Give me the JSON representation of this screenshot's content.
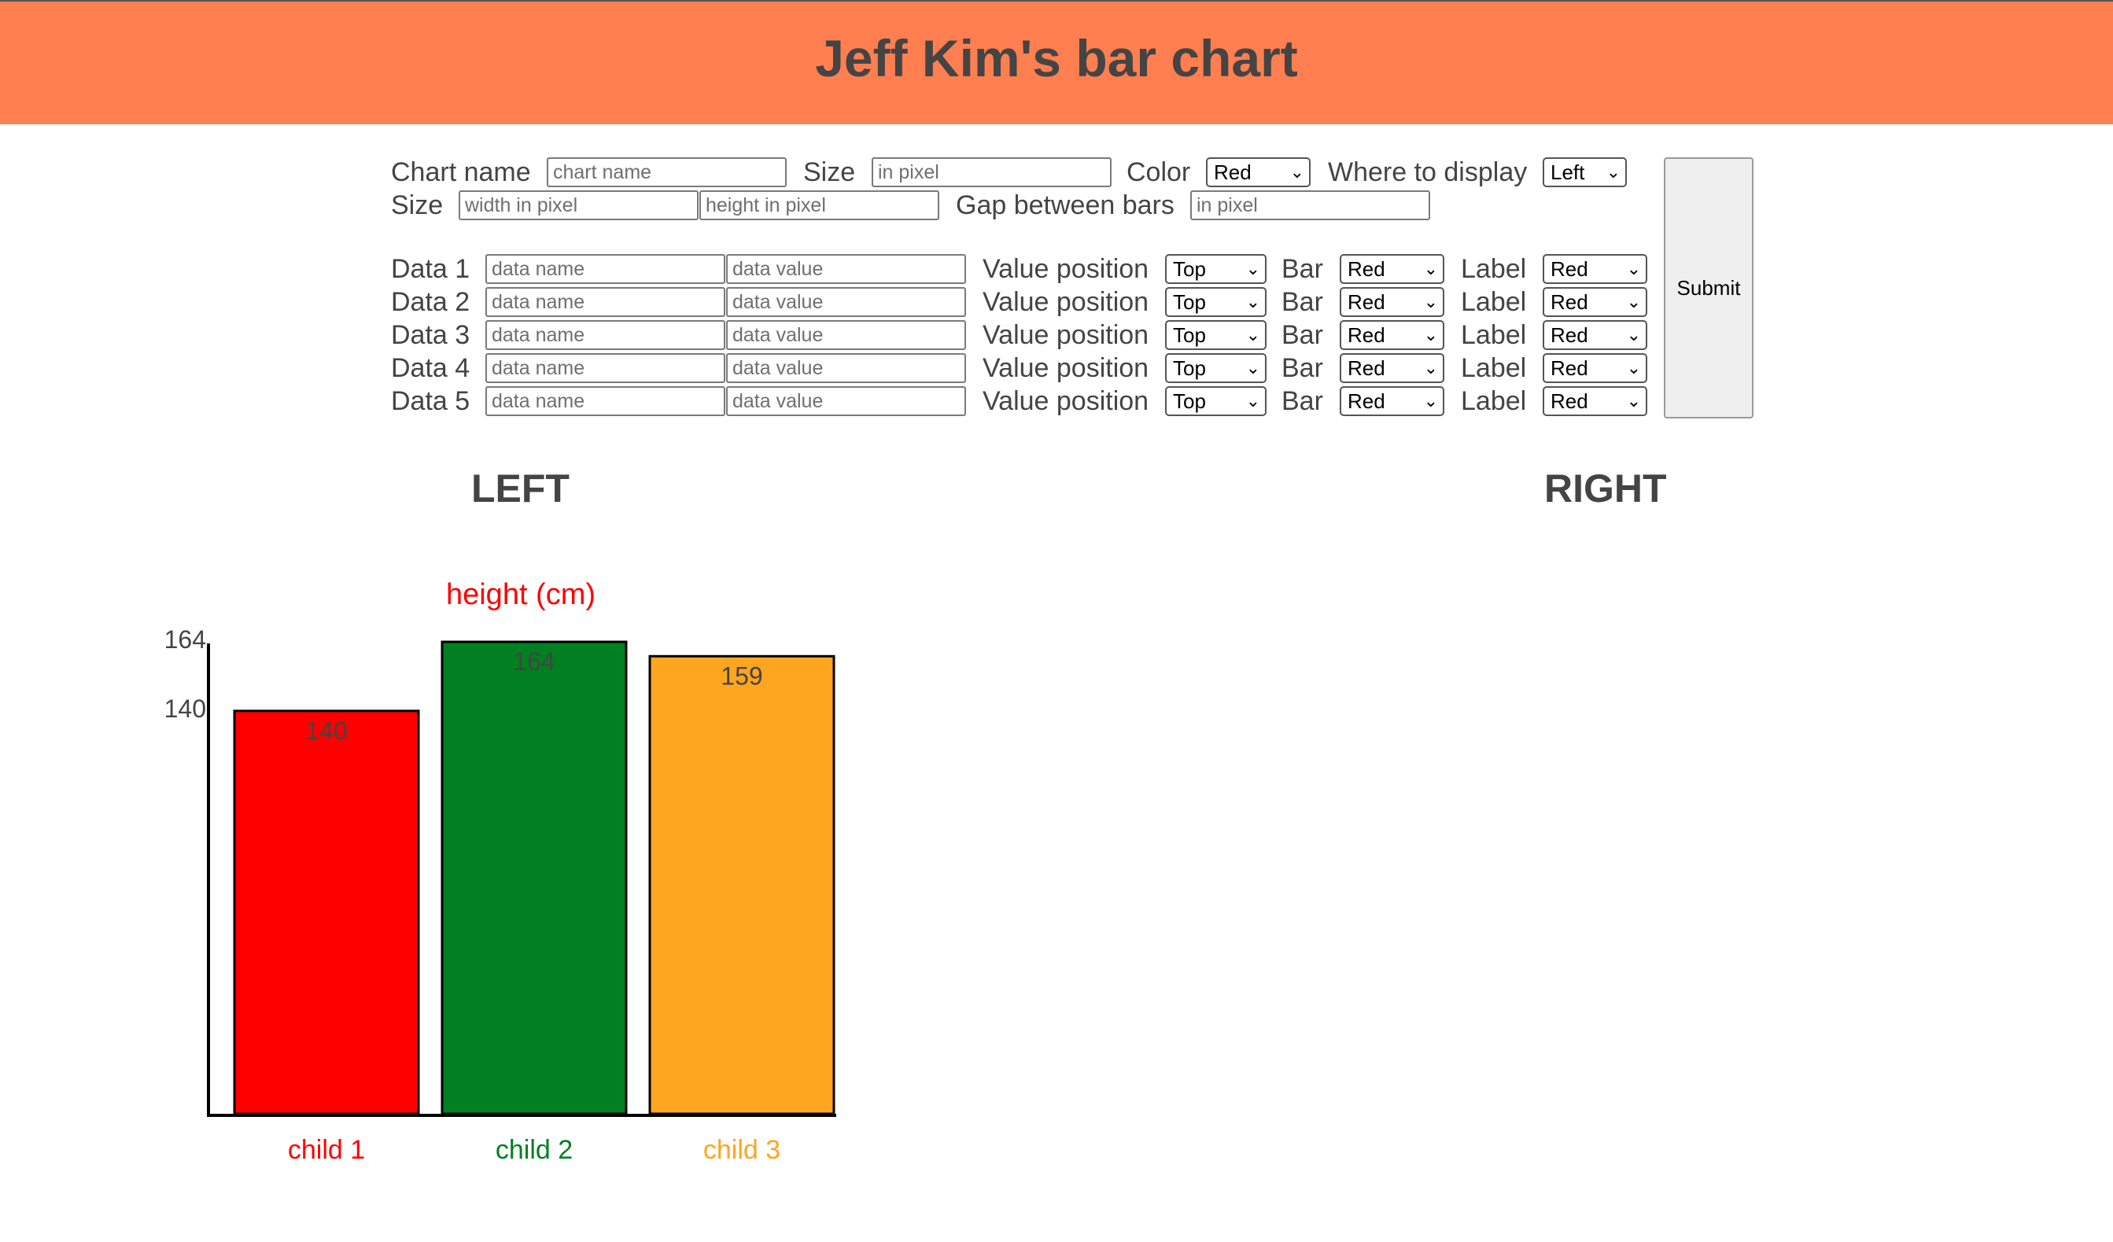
{
  "header": {
    "title": "Jeff Kim's bar chart"
  },
  "form": {
    "chart_name_label": "Chart name",
    "chart_name_placeholder": "chart name",
    "size_label": "Size",
    "size_placeholder": "in pixel",
    "color_label": "Color",
    "color_value": "Red",
    "display_label": "Where to display",
    "display_value": "Left",
    "size2_label": "Size",
    "width_placeholder": "width in pixel",
    "height_placeholder": "height in pixel",
    "gap_label": "Gap between bars",
    "gap_placeholder": "in pixel",
    "submit_label": "Submit",
    "rows": [
      {
        "label": "Data 1",
        "name_placeholder": "data name",
        "value_placeholder": "data value",
        "value_position_label": "Value position",
        "value_position": "Top",
        "bar_label": "Bar",
        "bar_color": "Red",
        "label_label": "Label",
        "label_color": "Red"
      },
      {
        "label": "Data 2",
        "name_placeholder": "data name",
        "value_placeholder": "data value",
        "value_position_label": "Value position",
        "value_position": "Top",
        "bar_label": "Bar",
        "bar_color": "Red",
        "label_label": "Label",
        "label_color": "Red"
      },
      {
        "label": "Data 3",
        "name_placeholder": "data name",
        "value_placeholder": "data value",
        "value_position_label": "Value position",
        "value_position": "Top",
        "bar_label": "Bar",
        "bar_color": "Red",
        "label_label": "Label",
        "label_color": "Red"
      },
      {
        "label": "Data 4",
        "name_placeholder": "data name",
        "value_placeholder": "data value",
        "value_position_label": "Value position",
        "value_position": "Top",
        "bar_label": "Bar",
        "bar_color": "Red",
        "label_label": "Label",
        "label_color": "Red"
      },
      {
        "label": "Data 5",
        "name_placeholder": "data name",
        "value_placeholder": "data value",
        "value_position_label": "Value position",
        "value_position": "Top",
        "bar_label": "Bar",
        "bar_color": "Red",
        "label_label": "Label",
        "label_color": "Red"
      }
    ]
  },
  "sections": {
    "left_title": "LEFT",
    "right_title": "RIGHT"
  },
  "colors": {
    "header_bg": "#ff7f50",
    "title_text": "#444444"
  },
  "chart_data": {
    "type": "bar",
    "title": "height (cm)",
    "title_color": "#ff0000",
    "categories": [
      "child 1",
      "child 2",
      "child 3"
    ],
    "values": [
      140,
      164,
      159
    ],
    "bar_colors": [
      "#ff0000",
      "#008020",
      "#ffa520"
    ],
    "label_colors": [
      "#ff0000",
      "#008020",
      "#ffa520"
    ],
    "value_position": "top",
    "y_ticks": [
      164,
      140
    ],
    "ylim": [
      0,
      164
    ],
    "grid": false
  }
}
